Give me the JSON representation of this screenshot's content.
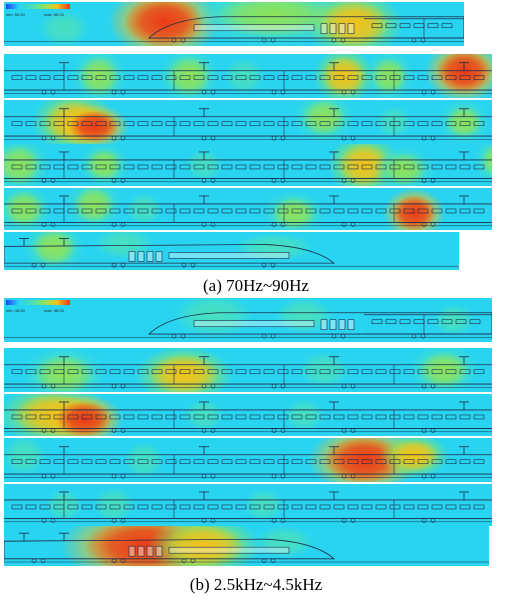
{
  "figure": {
    "panel_a": {
      "caption": "(a)    70Hz~90Hz",
      "colorbar": {
        "min_label": "min: 50.00",
        "max_label": "max: 65.00"
      },
      "colors": {
        "background": "#29d4f0",
        "low": "#48e0c0",
        "mid": "#8ee35a",
        "high": "#f2c21c",
        "peak": "#e93a1a"
      }
    },
    "panel_b": {
      "caption": "(b) 2.5kHz~4.5kHz",
      "colorbar": {
        "min_label": "min: 45.00",
        "max_label": "max: 58.00"
      },
      "colors": {
        "background": "#29d4f0",
        "low": "#48e0c0",
        "mid": "#8ee35a",
        "high": "#f2c21c",
        "peak": "#e93a1a"
      }
    }
  }
}
